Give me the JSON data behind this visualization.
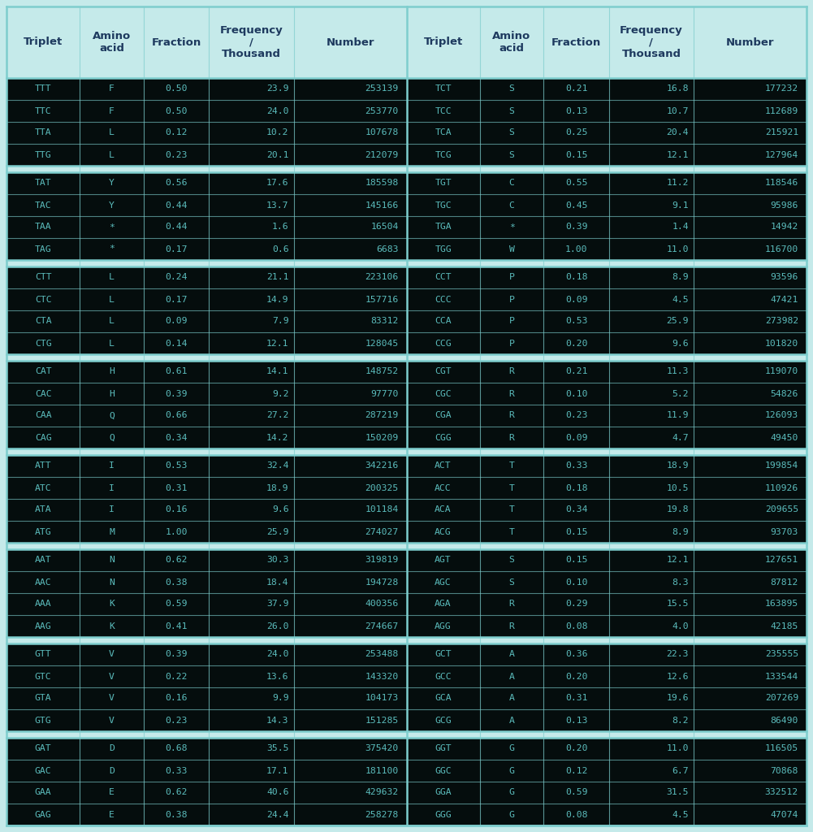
{
  "background_color": "#c5eaea",
  "divider_color": "#7ecece",
  "dark_row_color": "#050d0d",
  "text_teal": "#5bbcbc",
  "text_header": "#1e3a5f",
  "header_labels": [
    "Triplet",
    "Amino\nacid",
    "Fraction",
    "Frequency\n/\nThousand",
    "Number",
    "Triplet",
    "Amino\nacid",
    "Fraction",
    "Frequency\n/\nThousand",
    "Number"
  ],
  "left_table": [
    [
      "TTT",
      "F",
      "0.50",
      "23.9",
      "253139"
    ],
    [
      "TTC",
      "F",
      "0.50",
      "24.0",
      "253770"
    ],
    [
      "TTA",
      "L",
      "0.12",
      "10.2",
      "107678"
    ],
    [
      "TTG",
      "L",
      "0.23",
      "20.1",
      "212079"
    ],
    [
      "TAT",
      "Y",
      "0.56",
      "17.6",
      "185598"
    ],
    [
      "TAC",
      "Y",
      "0.44",
      "13.7",
      "145166"
    ],
    [
      "TAA",
      "*",
      "0.44",
      "1.6",
      "16504"
    ],
    [
      "TAG",
      "*",
      "0.17",
      "0.6",
      "6683"
    ],
    [
      "CTT",
      "L",
      "0.24",
      "21.1",
      "223106"
    ],
    [
      "CTC",
      "L",
      "0.17",
      "14.9",
      "157716"
    ],
    [
      "CTA",
      "L",
      "0.09",
      "7.9",
      "83312"
    ],
    [
      "CTG",
      "L",
      "0.14",
      "12.1",
      "128045"
    ],
    [
      "CAT",
      "H",
      "0.61",
      "14.1",
      "148752"
    ],
    [
      "CAC",
      "H",
      "0.39",
      "9.2",
      "97770"
    ],
    [
      "CAA",
      "Q",
      "0.66",
      "27.2",
      "287219"
    ],
    [
      "CAG",
      "Q",
      "0.34",
      "14.2",
      "150209"
    ],
    [
      "ATT",
      "I",
      "0.53",
      "32.4",
      "342216"
    ],
    [
      "ATC",
      "I",
      "0.31",
      "18.9",
      "200325"
    ],
    [
      "ATA",
      "I",
      "0.16",
      "9.6",
      "101184"
    ],
    [
      "ATG",
      "M",
      "1.00",
      "25.9",
      "274027"
    ],
    [
      "AAT",
      "N",
      "0.62",
      "30.3",
      "319819"
    ],
    [
      "AAC",
      "N",
      "0.38",
      "18.4",
      "194728"
    ],
    [
      "AAA",
      "K",
      "0.59",
      "37.9",
      "400356"
    ],
    [
      "AAG",
      "K",
      "0.41",
      "26.0",
      "274667"
    ],
    [
      "GTT",
      "V",
      "0.39",
      "24.0",
      "253488"
    ],
    [
      "GTC",
      "V",
      "0.22",
      "13.6",
      "143320"
    ],
    [
      "GTA",
      "V",
      "0.16",
      "9.9",
      "104173"
    ],
    [
      "GTG",
      "V",
      "0.23",
      "14.3",
      "151285"
    ],
    [
      "GAT",
      "D",
      "0.68",
      "35.5",
      "375420"
    ],
    [
      "GAC",
      "D",
      "0.33",
      "17.1",
      "181100"
    ],
    [
      "GAA",
      "E",
      "0.62",
      "40.6",
      "429632"
    ],
    [
      "GAG",
      "E",
      "0.38",
      "24.4",
      "258278"
    ]
  ],
  "right_table": [
    [
      "TCT",
      "S",
      "0.21",
      "16.8",
      "177232"
    ],
    [
      "TCC",
      "S",
      "0.13",
      "10.7",
      "112689"
    ],
    [
      "TCA",
      "S",
      "0.25",
      "20.4",
      "215921"
    ],
    [
      "TCG",
      "S",
      "0.15",
      "12.1",
      "127964"
    ],
    [
      "TGT",
      "C",
      "0.55",
      "11.2",
      "118546"
    ],
    [
      "TGC",
      "C",
      "0.45",
      "9.1",
      "95986"
    ],
    [
      "TGA",
      "*",
      "0.39",
      "1.4",
      "14942"
    ],
    [
      "TGG",
      "W",
      "1.00",
      "11.0",
      "116700"
    ],
    [
      "CCT",
      "P",
      "0.18",
      "8.9",
      "93596"
    ],
    [
      "CCC",
      "P",
      "0.09",
      "4.5",
      "47421"
    ],
    [
      "CCA",
      "P",
      "0.53",
      "25.9",
      "273982"
    ],
    [
      "CCG",
      "P",
      "0.20",
      "9.6",
      "101820"
    ],
    [
      "CGT",
      "R",
      "0.21",
      "11.3",
      "119070"
    ],
    [
      "CGC",
      "R",
      "0.10",
      "5.2",
      "54826"
    ],
    [
      "CGA",
      "R",
      "0.23",
      "11.9",
      "126093"
    ],
    [
      "CGG",
      "R",
      "0.09",
      "4.7",
      "49450"
    ],
    [
      "ACT",
      "T",
      "0.33",
      "18.9",
      "199854"
    ],
    [
      "ACC",
      "T",
      "0.18",
      "10.5",
      "110926"
    ],
    [
      "ACA",
      "T",
      "0.34",
      "19.8",
      "209655"
    ],
    [
      "ACG",
      "T",
      "0.15",
      "8.9",
      "93703"
    ],
    [
      "AGT",
      "S",
      "0.15",
      "12.1",
      "127651"
    ],
    [
      "AGC",
      "S",
      "0.10",
      "8.3",
      "87812"
    ],
    [
      "AGA",
      "R",
      "0.29",
      "15.5",
      "163895"
    ],
    [
      "AGG",
      "R",
      "0.08",
      "4.0",
      "42185"
    ],
    [
      "GCT",
      "A",
      "0.36",
      "22.3",
      "235555"
    ],
    [
      "GCC",
      "A",
      "0.20",
      "12.6",
      "133544"
    ],
    [
      "GCA",
      "A",
      "0.31",
      "19.6",
      "207269"
    ],
    [
      "GCG",
      "A",
      "0.13",
      "8.2",
      "86490"
    ],
    [
      "GGT",
      "G",
      "0.20",
      "11.0",
      "116505"
    ],
    [
      "GGC",
      "G",
      "0.12",
      "6.7",
      "70868"
    ],
    [
      "GGA",
      "G",
      "0.59",
      "31.5",
      "332512"
    ],
    [
      "GGG",
      "G",
      "0.08",
      "4.5",
      "47074"
    ]
  ],
  "figsize": [
    10.01,
    10.24
  ],
  "dpi": 100
}
